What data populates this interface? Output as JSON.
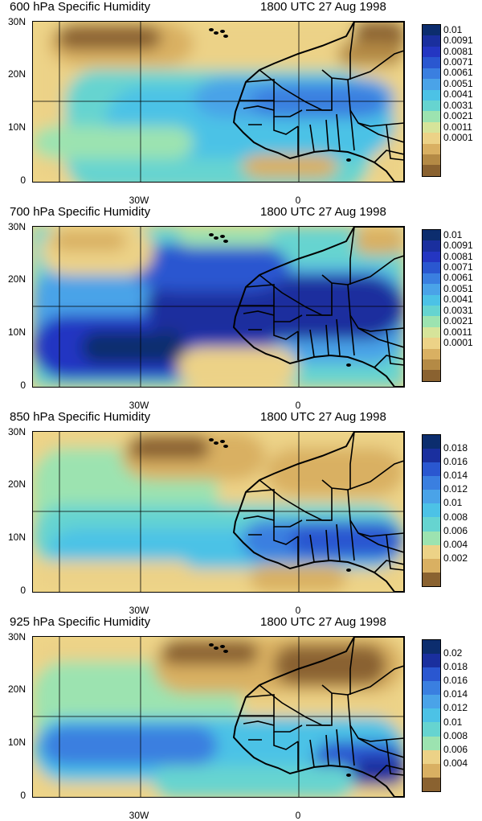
{
  "panels": [
    {
      "title_left": "600 hPa Specific Humidity",
      "title_right": "1800 UTC 27 Aug 1998",
      "y_labels": [
        "30N",
        "20N",
        "10N",
        "0"
      ],
      "x_labels": [
        "30W",
        "0"
      ],
      "colorbar_labels": [
        "0.01",
        "0.0091",
        "0.0081",
        "0.0071",
        "0.0061",
        "0.0051",
        "0.0041",
        "0.0031",
        "0.0021",
        "0.0011",
        "0.0001"
      ],
      "colorbar_colors": [
        "#0c2d6e",
        "#1a2f9e",
        "#2436c2",
        "#2a57d0",
        "#3a7fe0",
        "#4aa3e8",
        "#4cc2e6",
        "#66d4d0",
        "#9ce3b0",
        "#d6e49a",
        "#ecd287",
        "#d9b062",
        "#b48a45",
        "#8a6230"
      ],
      "field_style": "dry"
    },
    {
      "title_left": "700 hPa Specific Humidity",
      "title_right": "1800 UTC 27 Aug 1998",
      "y_labels": [
        "30N",
        "20N",
        "10N",
        "0"
      ],
      "x_labels": [
        "30W",
        "0"
      ],
      "colorbar_labels": [
        "0.01",
        "0.0091",
        "0.0081",
        "0.0071",
        "0.0061",
        "0.0051",
        "0.0041",
        "0.0031",
        "0.0021",
        "0.0011",
        "0.0001"
      ],
      "colorbar_colors": [
        "#0c2d6e",
        "#1a2f9e",
        "#2436c2",
        "#2a57d0",
        "#3a7fe0",
        "#4aa3e8",
        "#4cc2e6",
        "#66d4d0",
        "#9ce3b0",
        "#d6e49a",
        "#ecd287",
        "#d9b062",
        "#b48a45",
        "#8a6230"
      ],
      "field_style": "moist"
    },
    {
      "title_left": "850 hPa Specific Humidity",
      "title_right": "1800 UTC 27 Aug 1998",
      "y_labels": [
        "30N",
        "20N",
        "10N",
        "0"
      ],
      "x_labels": [
        "30W",
        "0"
      ],
      "colorbar_labels": [
        "0.018",
        "0.016",
        "0.014",
        "0.012",
        "0.01",
        "0.008",
        "0.006",
        "0.004",
        "0.002"
      ],
      "colorbar_colors": [
        "#0c2d6e",
        "#1a2f9e",
        "#2a57d0",
        "#3a7fe0",
        "#4aa3e8",
        "#4cc2e6",
        "#66d4d0",
        "#9ce3b0",
        "#ecd287",
        "#d9b062",
        "#8a6230"
      ],
      "field_style": "mid"
    },
    {
      "title_left": "925 hPa Specific Humidity",
      "title_right": "1800 UTC 27 Aug 1998",
      "y_labels": [
        "30N",
        "20N",
        "10N",
        "0"
      ],
      "x_labels": [
        "30W",
        "0"
      ],
      "colorbar_labels": [
        "0.02",
        "0.018",
        "0.016",
        "0.014",
        "0.012",
        "0.01",
        "0.008",
        "0.006",
        "0.004"
      ],
      "colorbar_colors": [
        "#0c2d6e",
        "#1a2f9e",
        "#2a57d0",
        "#3a7fe0",
        "#4aa3e8",
        "#4cc2e6",
        "#66d4d0",
        "#9ce3b0",
        "#ecd287",
        "#d9b062",
        "#8a6230"
      ],
      "field_style": "low"
    }
  ]
}
